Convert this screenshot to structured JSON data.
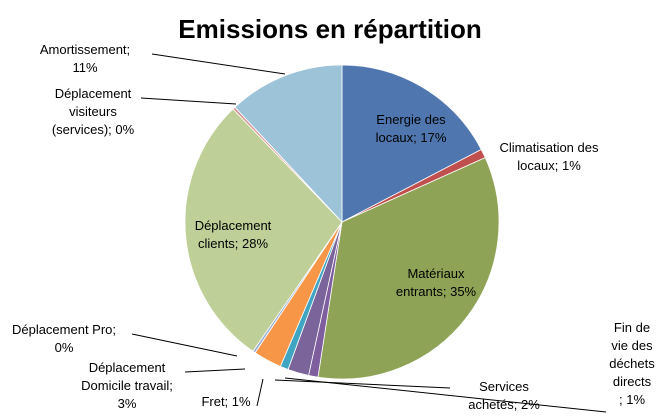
{
  "chart_data": {
    "type": "pie",
    "title": "Emissions en répartition",
    "slices": [
      {
        "name": "Energie des locaux",
        "percent": 17,
        "label_lines": [
          "Energie des",
          "locaux; 17%"
        ],
        "color": "#4F76AE"
      },
      {
        "name": "Climatisation des locaux",
        "percent": 1,
        "label_lines": [
          "Climatisation des",
          "locaux; 1%"
        ],
        "color": "#C0504D"
      },
      {
        "name": "Matériaux entrants",
        "percent": 35,
        "label_lines": [
          "Matériaux",
          "entrants; 35%"
        ],
        "color": "#8FA356"
      },
      {
        "name": "Fin de vie des déchets directs",
        "percent": 1,
        "label_lines": [
          "Fin de",
          "vie des",
          "déchets",
          "directs",
          "; 1%"
        ],
        "color": "#7E5E9E"
      },
      {
        "name": "Services achetés",
        "percent": 2,
        "label_lines": [
          "Services",
          "achetés; 2%"
        ],
        "color": "#7A649A"
      },
      {
        "name": "Fret",
        "percent": 1,
        "label_lines": [
          "Fret; 1%"
        ],
        "color": "#3FA5C2"
      },
      {
        "name": "Déplacement Domicile travail",
        "percent": 3,
        "label_lines": [
          "Déplacement",
          "Domicile travail;",
          "3%"
        ],
        "color": "#F79646"
      },
      {
        "name": "Déplacement Pro",
        "percent": 0,
        "label_lines": [
          "Déplacement Pro;",
          "0%"
        ],
        "color": "#9CB0D4"
      },
      {
        "name": "Déplacement clients",
        "percent": 28,
        "label_lines": [
          "Déplacement",
          "clients; 28%"
        ],
        "color": "#BECF97"
      },
      {
        "name": "Déplacement visiteurs (services)",
        "percent": 0,
        "label_lines": [
          "Déplacement",
          "visiteurs",
          "(services); 0%"
        ],
        "color": "#D99694"
      },
      {
        "name": "Amortissement",
        "percent": 11,
        "label_lines": [
          "Amortissement;",
          "11%"
        ],
        "color": "#9DC3D8"
      }
    ]
  }
}
